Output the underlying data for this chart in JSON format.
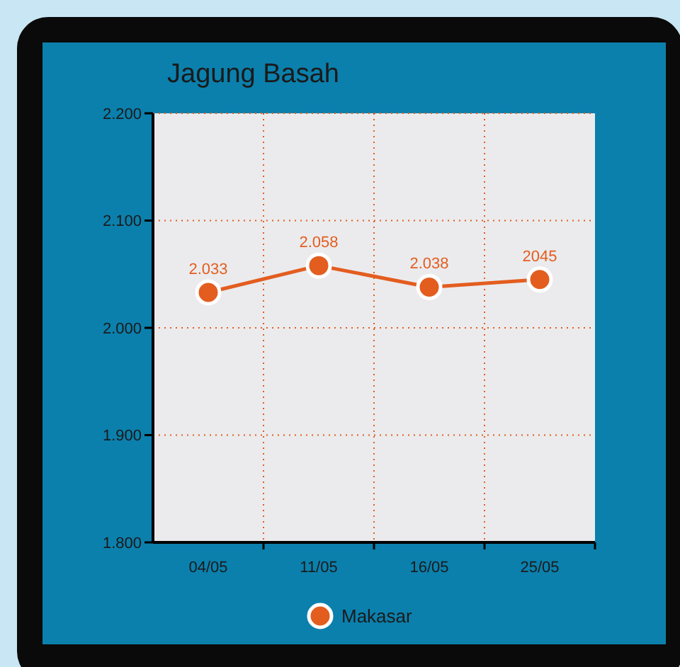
{
  "chart_data": {
    "type": "line",
    "title": "Jagung Basah",
    "categories": [
      "04/05",
      "11/05",
      "16/05",
      "25/05"
    ],
    "series": [
      {
        "name": "Makasar",
        "color": "#e35d1f",
        "values": [
          2033,
          2058,
          2038,
          2045
        ],
        "value_labels": [
          "2.033",
          "2.058",
          "2.038",
          "2045"
        ]
      }
    ],
    "ylim": [
      1800,
      2200
    ],
    "yticks": [
      {
        "value": 1800,
        "label": "1.800"
      },
      {
        "value": 1900,
        "label": "1.900"
      },
      {
        "value": 2000,
        "label": "2.000"
      },
      {
        "value": 2100,
        "label": "2.100"
      },
      {
        "value": 2200,
        "label": "2.200"
      }
    ],
    "grid": true,
    "legend": "bottom",
    "marker": "circle",
    "line_style": "solid"
  }
}
